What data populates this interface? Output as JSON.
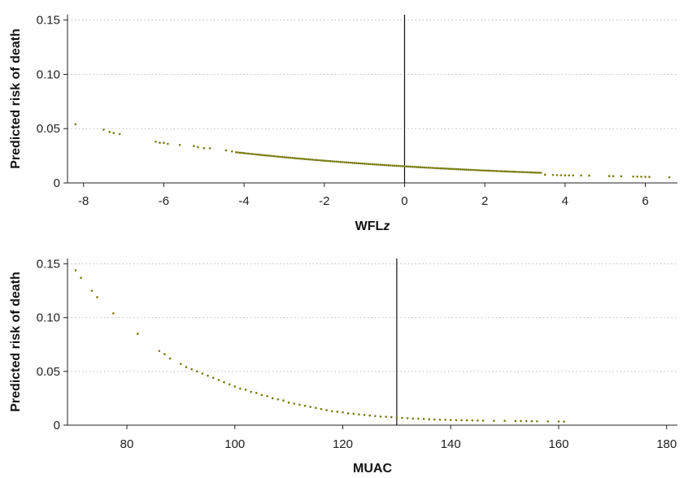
{
  "chart_data": [
    {
      "type": "scatter",
      "xlabel": "WFLz",
      "xlabel_italic_suffix": "z",
      "ylabel": "Predicted risk of death",
      "xlim": [
        -8.4,
        6.8
      ],
      "ylim": [
        0,
        0.155
      ],
      "xticks": [
        -8,
        -6,
        -4,
        -2,
        0,
        2,
        4,
        6
      ],
      "xtick_labels": [
        "-8",
        "-6",
        "-4",
        "-2",
        "0",
        "2",
        "4",
        "6"
      ],
      "yticks": [
        0,
        0.05,
        0.1,
        0.15
      ],
      "ytick_labels": [
        "0",
        "0.05",
        "0.10",
        "0.15"
      ],
      "grid": "horizontal dotted",
      "reference_line_x": 0,
      "point_color": "#7a7a10",
      "curve": {
        "x_start": -4.2,
        "x_end": 3.4,
        "step": 0.05,
        "y0": 0.0153,
        "k": 0.146
      },
      "points": [
        [
          -8.2,
          0.054
        ],
        [
          -7.5,
          0.049
        ],
        [
          -7.35,
          0.047
        ],
        [
          -7.25,
          0.046
        ],
        [
          -7.1,
          0.045
        ],
        [
          -6.2,
          0.038
        ],
        [
          -6.1,
          0.037
        ],
        [
          -6.0,
          0.037
        ],
        [
          -5.9,
          0.036
        ],
        [
          -5.6,
          0.035
        ],
        [
          -5.25,
          0.034
        ],
        [
          -5.15,
          0.033
        ],
        [
          -5.0,
          0.032
        ],
        [
          -4.85,
          0.032
        ],
        [
          -4.45,
          0.03
        ],
        [
          -4.3,
          0.029
        ],
        [
          3.5,
          0.0075
        ],
        [
          3.7,
          0.0074
        ],
        [
          3.8,
          0.0072
        ],
        [
          3.9,
          0.0071
        ],
        [
          4.0,
          0.007
        ],
        [
          4.1,
          0.007
        ],
        [
          4.2,
          0.0069
        ],
        [
          4.4,
          0.0068
        ],
        [
          4.6,
          0.0067
        ],
        [
          5.1,
          0.0063
        ],
        [
          5.2,
          0.0062
        ],
        [
          5.4,
          0.0061
        ],
        [
          5.7,
          0.0058
        ],
        [
          5.8,
          0.0058
        ],
        [
          5.9,
          0.0057
        ],
        [
          6.0,
          0.0056
        ],
        [
          6.1,
          0.0055
        ],
        [
          6.6,
          0.0052
        ]
      ]
    },
    {
      "type": "scatter",
      "xlabel": "MUAC",
      "ylabel": "Predicted risk of death",
      "xlim": [
        69,
        182
      ],
      "ylim": [
        0,
        0.155
      ],
      "xticks": [
        80,
        100,
        120,
        140,
        160,
        180
      ],
      "xtick_labels": [
        "80",
        "100",
        "120",
        "140",
        "160",
        "180"
      ],
      "yticks": [
        0,
        0.05,
        0.1,
        0.15
      ],
      "ytick_labels": [
        "0",
        "0.05",
        "0.10",
        "0.15"
      ],
      "grid": "horizontal dotted",
      "reference_line_x": 130,
      "point_color": "#7a7a10",
      "points": [
        [
          70.5,
          0.144
        ],
        [
          71.5,
          0.137
        ],
        [
          73.5,
          0.125
        ],
        [
          74.5,
          0.119
        ],
        [
          77.5,
          0.104
        ],
        [
          82,
          0.085
        ],
        [
          86,
          0.069
        ],
        [
          87,
          0.066
        ],
        [
          88,
          0.062
        ],
        [
          90,
          0.057
        ],
        [
          91,
          0.054
        ],
        [
          92,
          0.052
        ],
        [
          93,
          0.05
        ],
        [
          94,
          0.048
        ],
        [
          95,
          0.046
        ],
        [
          96,
          0.044
        ],
        [
          97,
          0.042
        ],
        [
          98,
          0.04
        ],
        [
          99,
          0.038
        ],
        [
          100,
          0.036
        ],
        [
          101,
          0.034
        ],
        [
          102,
          0.033
        ],
        [
          103,
          0.031
        ],
        [
          104,
          0.03
        ],
        [
          105,
          0.028
        ],
        [
          106,
          0.027
        ],
        [
          107,
          0.025
        ],
        [
          108,
          0.024
        ],
        [
          109,
          0.023
        ],
        [
          110,
          0.021
        ],
        [
          111,
          0.02
        ],
        [
          112,
          0.019
        ],
        [
          113,
          0.018
        ],
        [
          114,
          0.017
        ],
        [
          115,
          0.016
        ],
        [
          116,
          0.015
        ],
        [
          117,
          0.014
        ],
        [
          118,
          0.013
        ],
        [
          119,
          0.0125
        ],
        [
          120,
          0.012
        ],
        [
          121,
          0.011
        ],
        [
          122,
          0.0105
        ],
        [
          123,
          0.01
        ],
        [
          124,
          0.0095
        ],
        [
          125,
          0.009
        ],
        [
          126,
          0.0085
        ],
        [
          127,
          0.008
        ],
        [
          128,
          0.0078
        ],
        [
          129,
          0.0075
        ],
        [
          130,
          0.0072
        ],
        [
          131,
          0.0068
        ],
        [
          132,
          0.0065
        ],
        [
          133,
          0.0062
        ],
        [
          134,
          0.006
        ],
        [
          135,
          0.0058
        ],
        [
          136,
          0.0055
        ],
        [
          137,
          0.0053
        ],
        [
          138,
          0.0051
        ],
        [
          139,
          0.005
        ],
        [
          140,
          0.0048
        ],
        [
          141,
          0.0047
        ],
        [
          142,
          0.0046
        ],
        [
          143,
          0.0045
        ],
        [
          144,
          0.0044
        ],
        [
          145,
          0.0043
        ],
        [
          146,
          0.0042
        ],
        [
          148,
          0.0041
        ],
        [
          150,
          0.004
        ],
        [
          152,
          0.0039
        ],
        [
          153,
          0.0038
        ],
        [
          154,
          0.0038
        ],
        [
          155,
          0.0037
        ],
        [
          156,
          0.0036
        ],
        [
          158,
          0.0035
        ],
        [
          160,
          0.0034
        ],
        [
          161,
          0.0033
        ]
      ]
    }
  ]
}
